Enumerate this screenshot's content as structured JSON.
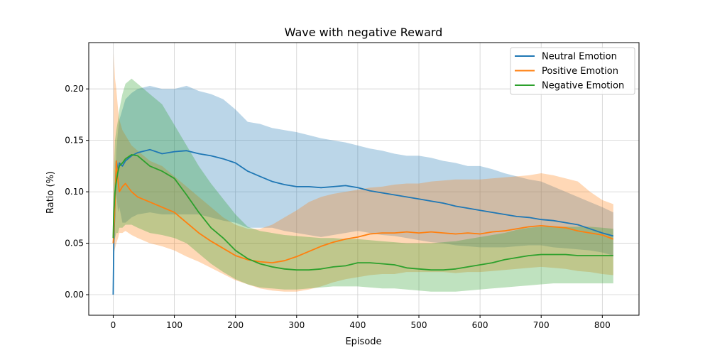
{
  "chart_data": {
    "type": "line",
    "title": "Wave with negative Reward",
    "xlabel": "Episode",
    "ylabel": "Ratio (%)",
    "xlim": [
      -40,
      860
    ],
    "ylim": [
      -0.02,
      0.245
    ],
    "xticks": [
      0,
      100,
      200,
      300,
      400,
      500,
      600,
      700,
      800
    ],
    "yticks": [
      0.0,
      0.05,
      0.1,
      0.15,
      0.2
    ],
    "ytick_labels": [
      "0.00",
      "0.05",
      "0.10",
      "0.15",
      "0.20"
    ],
    "grid": true,
    "legend_position": "top-right",
    "series": [
      {
        "name": "Neutral Emotion",
        "color": "#1f77b4",
        "x": [
          0,
          1,
          3,
          5,
          8,
          10,
          15,
          20,
          30,
          40,
          60,
          80,
          100,
          120,
          140,
          160,
          180,
          200,
          220,
          240,
          260,
          280,
          300,
          320,
          340,
          360,
          380,
          400,
          420,
          440,
          460,
          480,
          500,
          520,
          540,
          560,
          580,
          600,
          620,
          640,
          660,
          680,
          700,
          720,
          740,
          760,
          780,
          800,
          818
        ],
        "y": [
          0.0,
          0.05,
          0.09,
          0.13,
          0.12,
          0.128,
          0.125,
          0.13,
          0.135,
          0.138,
          0.141,
          0.137,
          0.139,
          0.14,
          0.137,
          0.135,
          0.132,
          0.128,
          0.12,
          0.115,
          0.11,
          0.107,
          0.105,
          0.105,
          0.104,
          0.105,
          0.106,
          0.104,
          0.101,
          0.099,
          0.097,
          0.095,
          0.093,
          0.091,
          0.089,
          0.086,
          0.084,
          0.082,
          0.08,
          0.078,
          0.076,
          0.075,
          0.073,
          0.072,
          0.07,
          0.068,
          0.064,
          0.06,
          0.057
        ],
        "upper": [
          0.0,
          0.06,
          0.1,
          0.14,
          0.16,
          0.17,
          0.18,
          0.19,
          0.196,
          0.2,
          0.203,
          0.2,
          0.2,
          0.203,
          0.198,
          0.195,
          0.19,
          0.18,
          0.168,
          0.166,
          0.162,
          0.16,
          0.158,
          0.155,
          0.152,
          0.15,
          0.148,
          0.145,
          0.142,
          0.14,
          0.137,
          0.135,
          0.135,
          0.133,
          0.13,
          0.128,
          0.125,
          0.125,
          0.122,
          0.118,
          0.115,
          0.112,
          0.11,
          0.105,
          0.1,
          0.095,
          0.09,
          0.085,
          0.08
        ],
        "lower": [
          0.0,
          0.04,
          0.08,
          0.1,
          0.08,
          0.085,
          0.07,
          0.07,
          0.075,
          0.078,
          0.08,
          0.078,
          0.078,
          0.078,
          0.078,
          0.075,
          0.072,
          0.07,
          0.065,
          0.065,
          0.065,
          0.062,
          0.06,
          0.058,
          0.056,
          0.058,
          0.06,
          0.062,
          0.06,
          0.058,
          0.057,
          0.055,
          0.053,
          0.051,
          0.05,
          0.048,
          0.047,
          0.046,
          0.046,
          0.046,
          0.047,
          0.048,
          0.048,
          0.046,
          0.045,
          0.044,
          0.043,
          0.041,
          0.038
        ]
      },
      {
        "name": "Positive Emotion",
        "color": "#ff7f0e",
        "x": [
          0,
          1,
          3,
          5,
          8,
          10,
          15,
          20,
          30,
          40,
          60,
          80,
          100,
          120,
          140,
          160,
          180,
          200,
          220,
          240,
          260,
          280,
          300,
          320,
          340,
          360,
          380,
          400,
          420,
          440,
          460,
          480,
          500,
          520,
          540,
          560,
          580,
          600,
          620,
          640,
          660,
          680,
          700,
          720,
          740,
          760,
          780,
          800,
          818
        ],
        "y": [
          0.05,
          0.06,
          0.09,
          0.13,
          0.11,
          0.1,
          0.105,
          0.108,
          0.1,
          0.095,
          0.09,
          0.085,
          0.08,
          0.07,
          0.06,
          0.052,
          0.045,
          0.038,
          0.034,
          0.032,
          0.031,
          0.033,
          0.037,
          0.042,
          0.047,
          0.051,
          0.054,
          0.056,
          0.059,
          0.06,
          0.06,
          0.061,
          0.06,
          0.061,
          0.06,
          0.059,
          0.06,
          0.059,
          0.061,
          0.062,
          0.064,
          0.066,
          0.067,
          0.066,
          0.065,
          0.062,
          0.06,
          0.058,
          0.054
        ],
        "upper": [
          0.06,
          0.235,
          0.21,
          0.2,
          0.18,
          0.17,
          0.16,
          0.155,
          0.145,
          0.14,
          0.13,
          0.125,
          0.115,
          0.105,
          0.095,
          0.085,
          0.075,
          0.068,
          0.064,
          0.064,
          0.068,
          0.075,
          0.082,
          0.09,
          0.095,
          0.098,
          0.1,
          0.102,
          0.104,
          0.105,
          0.107,
          0.108,
          0.108,
          0.11,
          0.111,
          0.112,
          0.112,
          0.112,
          0.113,
          0.114,
          0.115,
          0.116,
          0.118,
          0.116,
          0.113,
          0.11,
          0.1,
          0.092,
          0.088
        ],
        "lower": [
          0.04,
          0.04,
          0.045,
          0.05,
          0.055,
          0.06,
          0.06,
          0.062,
          0.058,
          0.055,
          0.05,
          0.047,
          0.043,
          0.037,
          0.032,
          0.026,
          0.02,
          0.014,
          0.01,
          0.006,
          0.004,
          0.003,
          0.003,
          0.005,
          0.008,
          0.012,
          0.015,
          0.017,
          0.019,
          0.02,
          0.02,
          0.022,
          0.022,
          0.022,
          0.022,
          0.021,
          0.022,
          0.022,
          0.023,
          0.024,
          0.025,
          0.026,
          0.027,
          0.026,
          0.025,
          0.023,
          0.022,
          0.02,
          0.019
        ]
      },
      {
        "name": "Negative Emotion",
        "color": "#2ca02c",
        "x": [
          0,
          1,
          3,
          5,
          8,
          10,
          15,
          20,
          30,
          40,
          60,
          80,
          100,
          120,
          140,
          160,
          180,
          200,
          220,
          240,
          260,
          280,
          300,
          320,
          340,
          360,
          380,
          400,
          420,
          440,
          460,
          480,
          500,
          520,
          540,
          560,
          580,
          600,
          620,
          640,
          660,
          680,
          700,
          720,
          740,
          760,
          780,
          800,
          818
        ],
        "y": [
          0.055,
          0.08,
          0.1,
          0.11,
          0.12,
          0.125,
          0.128,
          0.132,
          0.136,
          0.135,
          0.125,
          0.12,
          0.113,
          0.097,
          0.08,
          0.065,
          0.055,
          0.043,
          0.035,
          0.03,
          0.027,
          0.025,
          0.024,
          0.024,
          0.025,
          0.027,
          0.028,
          0.031,
          0.031,
          0.03,
          0.029,
          0.026,
          0.025,
          0.024,
          0.024,
          0.025,
          0.027,
          0.029,
          0.031,
          0.034,
          0.036,
          0.038,
          0.039,
          0.039,
          0.039,
          0.038,
          0.038,
          0.038,
          0.038
        ],
        "upper": [
          0.06,
          0.12,
          0.15,
          0.16,
          0.17,
          0.18,
          0.195,
          0.205,
          0.21,
          0.205,
          0.195,
          0.185,
          0.165,
          0.145,
          0.125,
          0.108,
          0.093,
          0.078,
          0.066,
          0.062,
          0.06,
          0.058,
          0.057,
          0.056,
          0.055,
          0.055,
          0.054,
          0.054,
          0.053,
          0.052,
          0.051,
          0.05,
          0.05,
          0.05,
          0.051,
          0.052,
          0.054,
          0.056,
          0.058,
          0.06,
          0.063,
          0.065,
          0.066,
          0.066,
          0.066,
          0.066,
          0.066,
          0.065,
          0.064
        ],
        "lower": [
          0.05,
          0.05,
          0.055,
          0.06,
          0.06,
          0.065,
          0.065,
          0.068,
          0.068,
          0.065,
          0.06,
          0.058,
          0.055,
          0.05,
          0.04,
          0.03,
          0.022,
          0.015,
          0.01,
          0.007,
          0.006,
          0.005,
          0.005,
          0.006,
          0.007,
          0.008,
          0.008,
          0.008,
          0.007,
          0.006,
          0.006,
          0.005,
          0.004,
          0.003,
          0.003,
          0.003,
          0.004,
          0.005,
          0.006,
          0.007,
          0.008,
          0.009,
          0.01,
          0.011,
          0.011,
          0.011,
          0.011,
          0.011,
          0.011
        ]
      }
    ]
  }
}
